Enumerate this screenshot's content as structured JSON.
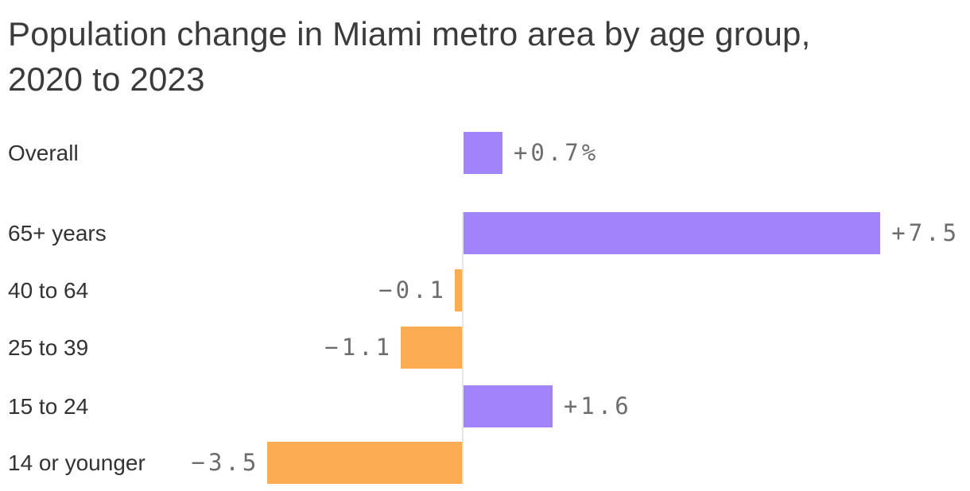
{
  "chart_data": {
    "type": "bar",
    "orientation": "horizontal",
    "title": "Population change in Miami metro area by age group, 2020 to 2023",
    "categories": [
      "Overall",
      "65+ years",
      "40 to 64",
      "25 to 39",
      "15 to 24",
      "14 or younger"
    ],
    "values": [
      0.7,
      7.5,
      -0.1,
      -1.1,
      1.6,
      -3.5
    ],
    "value_labels": [
      "+0.7%",
      "+7.5",
      "−0.1",
      "−1.1",
      "+1.6",
      "−3.5"
    ],
    "baseline": 0,
    "xlim": [
      -3.5,
      9.1
    ],
    "grid": "off",
    "legend": "none",
    "colors": {
      "positive_bar": "#a183fb",
      "negative_bar": "#fbac53",
      "axis_line": "#e8e6e3",
      "title_text": "#3b3b3b",
      "category_text": "#333333",
      "value_text": "#6d6d6d"
    }
  }
}
